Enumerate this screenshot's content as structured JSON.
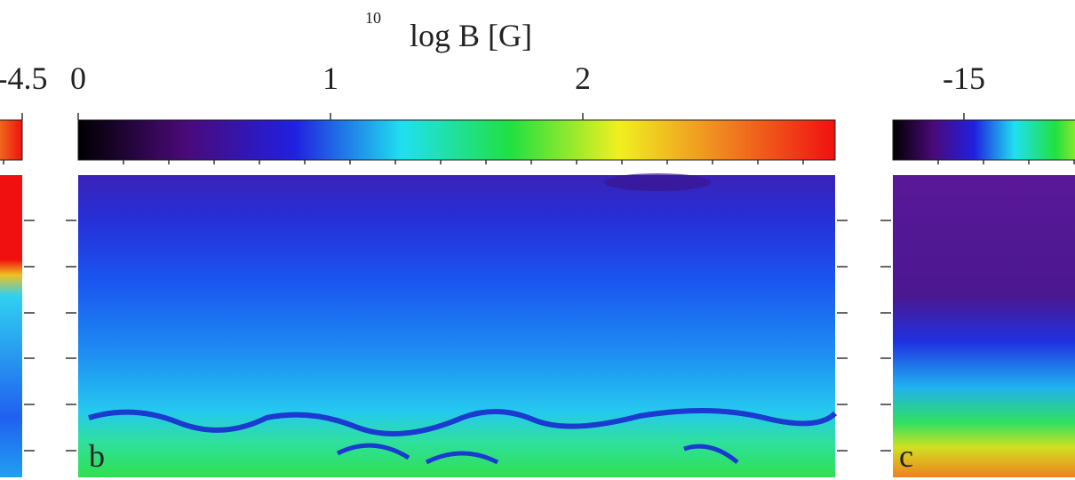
{
  "chart_data": [
    {
      "type": "heatmap",
      "clim": [
        -6,
        -4.5
      ],
      "cticks": [
        -4.5
      ],
      "colormap": [
        "#000000",
        "#4a0a7a",
        "#2020e0",
        "#20e0f0",
        "#20e040",
        "#f0f020",
        "#f08020",
        "#f01010"
      ]
    },
    {
      "type": "heatmap",
      "title": "log B [G]",
      "title_prefix": "10",
      "clim": [
        0,
        3
      ],
      "cticks": [
        0,
        1,
        2
      ],
      "colormap": [
        "#000000",
        "#4a0a7a",
        "#2020e0",
        "#20e0f0",
        "#20e040",
        "#f0f020",
        "#f08020",
        "#f01010"
      ],
      "panel_label": "b"
    },
    {
      "type": "heatmap",
      "clim": [
        -16,
        -12
      ],
      "cticks": [
        -15
      ],
      "colormap": [
        "#000000",
        "#4a0a7a",
        "#2020e0",
        "#20e0f0",
        "#20e040",
        "#f0f020",
        "#f08020",
        "#f01010"
      ],
      "panel_label": "c"
    }
  ]
}
